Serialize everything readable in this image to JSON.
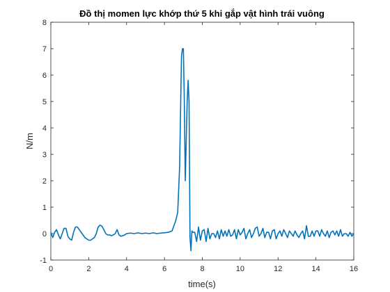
{
  "chart_data": {
    "type": "line",
    "title": "Đồ thị momen lực khớp thứ 5 khi gắp vật hình trái vuông",
    "xlabel": "time(s)",
    "ylabel": "N/m",
    "xlim": [
      0,
      16
    ],
    "ylim": [
      -1,
      8
    ],
    "xticks": [
      0,
      2,
      4,
      6,
      8,
      10,
      12,
      14,
      16
    ],
    "yticks": [
      -1,
      0,
      1,
      2,
      3,
      4,
      5,
      6,
      7,
      8
    ],
    "grid": false,
    "line_color": "#0072bd",
    "series": [
      {
        "x": [
          0,
          0.1,
          0.2,
          0.3,
          0.4,
          0.5,
          0.6,
          0.7,
          0.8,
          0.9,
          1.0,
          1.1,
          1.2,
          1.3,
          1.4,
          1.5,
          1.6,
          1.7,
          1.8,
          1.9,
          2.0,
          2.1,
          2.2,
          2.3,
          2.4,
          2.5,
          2.6,
          2.7,
          2.8,
          2.9,
          3.0,
          3.1,
          3.2,
          3.3,
          3.4,
          3.5,
          3.6,
          3.7,
          3.8,
          3.9,
          4.0,
          4.2,
          4.4,
          4.6,
          4.8,
          5.0,
          5.2,
          5.4,
          5.6,
          5.8,
          6.0,
          6.2,
          6.4,
          6.5,
          6.6,
          6.7,
          6.8,
          6.9,
          6.95,
          7.0,
          7.05,
          7.1,
          7.15,
          7.2,
          7.25,
          7.3,
          7.35,
          7.4,
          7.45,
          7.5,
          7.6,
          7.7,
          7.8,
          7.9,
          8.0,
          8.1,
          8.2,
          8.3,
          8.4,
          8.5,
          8.6,
          8.7,
          8.8,
          8.9,
          9.0,
          9.1,
          9.2,
          9.3,
          9.4,
          9.5,
          9.6,
          9.7,
          9.8,
          9.9,
          10.0,
          10.1,
          10.2,
          10.3,
          10.4,
          10.5,
          10.6,
          10.7,
          10.8,
          10.9,
          11.0,
          11.1,
          11.2,
          11.3,
          11.4,
          11.5,
          11.6,
          11.7,
          11.8,
          11.9,
          12.0,
          12.1,
          12.2,
          12.3,
          12.4,
          12.5,
          12.6,
          12.7,
          12.8,
          12.9,
          13.0,
          13.1,
          13.2,
          13.3,
          13.4,
          13.5,
          13.6,
          13.7,
          13.8,
          13.9,
          14.0,
          14.1,
          14.2,
          14.3,
          14.4,
          14.5,
          14.6,
          14.7,
          14.8,
          14.9,
          15.0,
          15.1,
          15.2,
          15.3,
          15.4,
          15.5,
          15.6,
          15.7,
          15.8,
          15.9,
          16.0
        ],
        "y": [
          0.05,
          -0.15,
          0.05,
          0.15,
          -0.05,
          -0.2,
          0.0,
          0.2,
          0.2,
          -0.1,
          -0.2,
          -0.25,
          0.05,
          0.25,
          0.25,
          0.15,
          0.05,
          -0.05,
          -0.15,
          -0.2,
          -0.25,
          -0.25,
          -0.2,
          -0.15,
          0.0,
          0.25,
          0.32,
          0.28,
          0.15,
          0.0,
          -0.05,
          -0.05,
          -0.08,
          -0.05,
          0.0,
          0.15,
          -0.05,
          -0.1,
          -0.08,
          -0.05,
          0.0,
          0.02,
          0.0,
          0.03,
          0.0,
          0.02,
          0.0,
          0.03,
          0.0,
          0.02,
          0.03,
          0.05,
          0.1,
          0.3,
          0.5,
          0.8,
          2.5,
          6.7,
          7.0,
          7.0,
          5.0,
          2.0,
          3.5,
          5.0,
          5.8,
          5.0,
          -0.15,
          -0.65,
          0.1,
          0.05,
          0.05,
          -0.3,
          0.25,
          -0.25,
          0.1,
          0.15,
          -0.3,
          0.2,
          -0.2,
          0.0,
          0.0,
          -0.15,
          0.1,
          -0.2,
          0.15,
          -0.1,
          0.1,
          -0.1,
          0.15,
          -0.1,
          -0.05,
          0.15,
          -0.2,
          0.15,
          -0.05,
          0.05,
          0.2,
          -0.2,
          0.0,
          0.15,
          -0.15,
          0.0,
          0.2,
          0.25,
          -0.1,
          0.0,
          0.2,
          -0.15,
          0.05,
          0.05,
          -0.2,
          0.1,
          0.15,
          -0.2,
          0.0,
          0.1,
          -0.1,
          0.15,
          0.0,
          -0.15,
          0.1,
          0.0,
          -0.1,
          0.1,
          -0.05,
          -0.15,
          0.0,
          0.1,
          -0.2,
          0.3,
          -0.1,
          -0.1,
          0.1,
          -0.1,
          0.1,
          0.1,
          -0.1,
          0.15,
          0.0,
          -0.1,
          0.1,
          -0.15,
          0.05,
          0.1,
          -0.05,
          0.1,
          -0.1,
          0.15,
          -0.1,
          0.0,
          0.0,
          -0.1,
          0.05,
          -0.1,
          0.0
        ]
      }
    ]
  }
}
